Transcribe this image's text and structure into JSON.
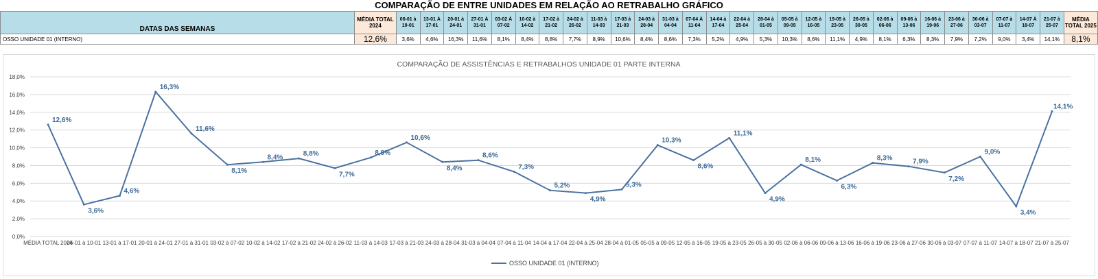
{
  "main_title": "COMPARAÇÃO DE ENTRE UNIDADES EM RELAÇÃO AO RETRABALHO GRÁFICO",
  "table": {
    "header_label": "DATAS DAS SEMANAS",
    "avg_2024_label": "MÉDIA TOTAL 2024",
    "avg_2025_label": "MÉDIA TOTAL 2025",
    "weeks": [
      "06-01 à 10-01",
      "13-01 À 17-01",
      "20-01 à 24-01",
      "27-01 À 31-01",
      "03-02 À 07-02",
      "10-02 à 14-02",
      "17-02 à 21-02",
      "24-02 à 26-02",
      "11-03 à 14-03",
      "17-03 à 21-03",
      "24-03 à 28-04",
      "31-03 à 04-04",
      "07-04 À 11-04",
      "14-04 à 17-04",
      "22-04 à 25-04",
      "28-04 à 01-05",
      "05-05 à 09-05",
      "12-05 à 16-05",
      "19-05 à 23-05",
      "26-05 à 30-05",
      "02-06 à 06-06",
      "09-06 à 13-06",
      "16-06 à 19-06",
      "23-06 à 27-06",
      "30-06 à 03-07",
      "07-07 à 11-07",
      "14-07 À 18-07",
      "21-07 à 25-07"
    ],
    "row_label": "OSSO UNIDADE 01 (INTERNO)",
    "avg_2024_value": "12,6%",
    "avg_2025_value": "8,1%",
    "values": [
      "3,6%",
      "4,6%",
      "16,3%",
      "11,6%",
      "8,1%",
      "8,4%",
      "8,8%",
      "7,7%",
      "8,9%",
      "10,6%",
      "8,4%",
      "8,6%",
      "7,3%",
      "5,2%",
      "4,9%",
      "5,3%",
      "10,3%",
      "8,6%",
      "11,1%",
      "4,9%",
      "8,1%",
      "6,3%",
      "8,3%",
      "7,9%",
      "7,2%",
      "9,0%",
      "3,4%",
      "14,1%"
    ]
  },
  "chart_data": {
    "type": "line",
    "title": "COMPARAÇÃO DE ASSISTÊNCIAS E RETRABALHOS UNIDADE 01 PARTE INTERNA",
    "categories": [
      "MÉDIA TOTAL 2024",
      "06-01 à 10-01",
      "13-01 à 17-01",
      "20-01 à 24-01",
      "27-01 à 31-01",
      "03-02 à 07-02",
      "10-02 à 14-02",
      "17-02 à 21-02",
      "24-02 à 26-02",
      "11-03 à 14-03",
      "17-03 à 21-03",
      "24-03 à 28-04",
      "31-03 à 04-04",
      "07-04 à 11-04",
      "14-04 à 17-04",
      "22-04 à 25-04",
      "28-04 à 01-05",
      "05-05 à 09-05",
      "12-05 à 16-05",
      "19-05 à 23-05",
      "26-05 à 30-05",
      "02-06 à 06-06",
      "09-06 à 13-06",
      "16-06 à 19-06",
      "23-06 à 27-06",
      "30-06 à 03-07",
      "07-07 à 11-07",
      "14-07 à 18-07",
      "21-07 à 25-07"
    ],
    "series": [
      {
        "name": "OSSO UNIDADE 01 (INTERNO)",
        "values": [
          12.6,
          3.6,
          4.6,
          16.3,
          11.6,
          8.1,
          8.4,
          8.8,
          7.7,
          8.9,
          10.6,
          8.4,
          8.6,
          7.3,
          5.2,
          4.9,
          5.3,
          10.3,
          8.6,
          11.1,
          4.9,
          8.1,
          6.3,
          8.3,
          7.9,
          7.2,
          9.0,
          3.4,
          14.1
        ],
        "labels": [
          "12,6%",
          "3,6%",
          "4,6%",
          "16,3%",
          "11,6%",
          "8,1%",
          "8,4%",
          "8,8%",
          "7,7%",
          "8,9%",
          "10,6%",
          "8,4%",
          "8,6%",
          "7,3%",
          "5,2%",
          "4,9%",
          "5,3%",
          "10,3%",
          "8,6%",
          "11,1%",
          "4,9%",
          "8,1%",
          "6,3%",
          "8,3%",
          "7,9%",
          "7,2%",
          "9,0%",
          "3,4%",
          "14,1%"
        ],
        "color": "#4a72a0"
      }
    ],
    "y_ticks": [
      "0,0%",
      "2,0%",
      "4,0%",
      "6,0%",
      "8,0%",
      "10,0%",
      "12,0%",
      "14,0%",
      "16,0%",
      "18,0%"
    ],
    "ylim": [
      0,
      18
    ],
    "grid": true,
    "legend_position": "bottom"
  },
  "colors": {
    "header_blue": "#b7dee8",
    "avg_peach": "#fde9d9",
    "line": "#4a72a0",
    "data_label": "#3e6a96",
    "grid": "#d9d9d9"
  }
}
